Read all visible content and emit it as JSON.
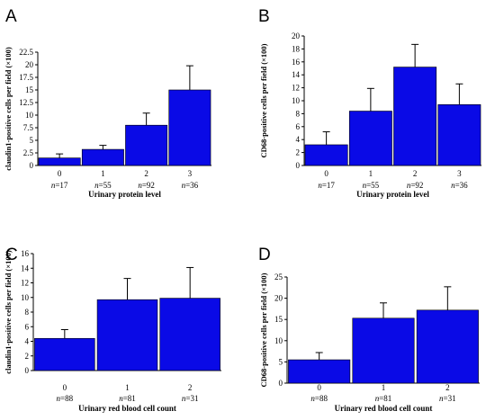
{
  "chart_data": [
    {
      "type": "bar",
      "panel": "A",
      "ylabel": "claudin1-positive cells per field (×100)",
      "xlabel": "Urinary  protein level",
      "categories": [
        "0",
        "1",
        "2",
        "3"
      ],
      "n_labels": [
        "=17",
        "=55",
        "=92",
        "=36"
      ],
      "n_prefix": "n",
      "values": [
        1.5,
        3.2,
        8.0,
        15.0
      ],
      "errors": [
        0.8,
        0.8,
        2.4,
        4.8
      ],
      "ylim": [
        0,
        22.5
      ],
      "yticks": [
        "0",
        "2.5",
        "5",
        "7.5",
        "10",
        "12.5",
        "15",
        "17.5",
        "20",
        "22.5"
      ],
      "bar_color": "#0a0ae6"
    },
    {
      "type": "bar",
      "panel": "B",
      "ylabel": "CD68-positive cells per field (×100)",
      "xlabel": "Urinary  protein level",
      "categories": [
        "0",
        "1",
        "2",
        "3"
      ],
      "n_labels": [
        "=17",
        "=55",
        "=92",
        "=36"
      ],
      "n_prefix": "n",
      "values": [
        3.2,
        8.4,
        15.2,
        9.4
      ],
      "errors": [
        2.0,
        3.5,
        3.5,
        3.2
      ],
      "ylim": [
        0,
        20
      ],
      "yticks": [
        "0",
        "2",
        "4",
        "6",
        "8",
        "10",
        "12",
        "14",
        "16",
        "18",
        "20"
      ],
      "bar_color": "#0a0ae6"
    },
    {
      "type": "bar",
      "panel": "C",
      "ylabel": "claudin1-positive cells per field (×100)",
      "xlabel": "Urinary  red blood cell count",
      "categories": [
        "0",
        "1",
        "2"
      ],
      "n_labels": [
        "=88",
        "=81",
        "=31"
      ],
      "n_prefix": "n",
      "values": [
        4.4,
        9.7,
        9.9
      ],
      "errors": [
        1.2,
        2.9,
        4.2
      ],
      "ylim": [
        0,
        16
      ],
      "yticks": [
        "0",
        "2",
        "4",
        "6",
        "8",
        "10",
        "12",
        "14",
        "16"
      ],
      "bar_color": "#0a0ae6"
    },
    {
      "type": "bar",
      "panel": "D",
      "ylabel": "CD68-positive cells per field (×100)",
      "xlabel": "Urinary  red blood cell count",
      "categories": [
        "0",
        "1",
        "2"
      ],
      "n_labels": [
        "=88",
        "=81",
        "=31"
      ],
      "n_prefix": "n",
      "values": [
        5.5,
        15.3,
        17.2
      ],
      "errors": [
        1.7,
        3.6,
        5.5
      ],
      "ylim": [
        0,
        25
      ],
      "yticks": [
        "0",
        "5",
        "10",
        "15",
        "20",
        "25"
      ],
      "bar_color": "#0a0ae6"
    }
  ]
}
